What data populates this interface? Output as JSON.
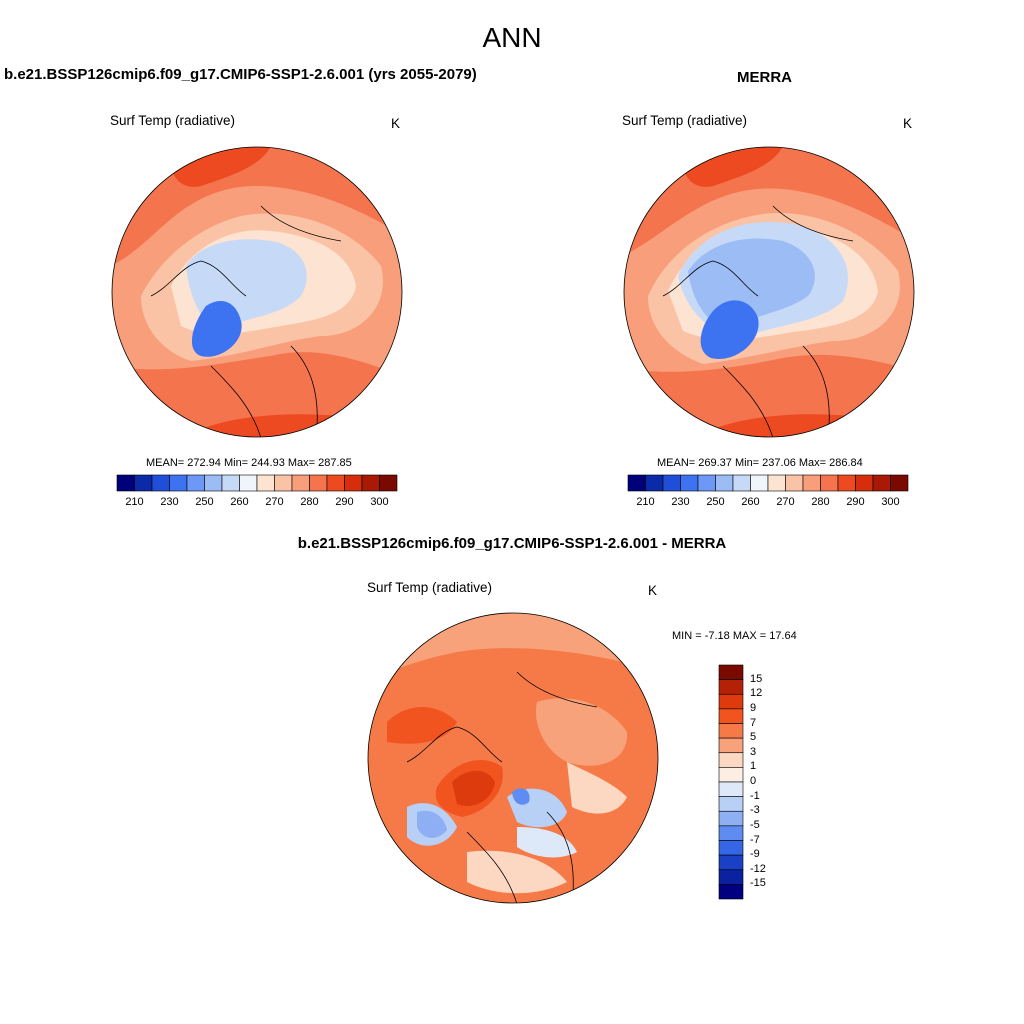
{
  "title": "ANN",
  "panels": [
    {
      "title": "b.e21.BSSP126cmip6.f09_g17.CMIP6-SSP1-2.6.001 (yrs 2055-2079)",
      "variable": "Surf Temp (radiative)",
      "units": "K",
      "stats": "MEAN= 272.94  Min= 244.93  Max= 287.85"
    },
    {
      "title": "MERRA",
      "variable": "Surf Temp (radiative)",
      "units": "K",
      "stats": "MEAN= 269.37  Min= 237.06  Max= 286.84"
    },
    {
      "title": "b.e21.BSSP126cmip6.f09_g17.CMIP6-SSP1-2.6.001 - MERRA",
      "variable": "Surf Temp (radiative)",
      "units": "K",
      "stats": "MIN =  -7.18 MAX =  17.64"
    }
  ],
  "abs_colorbar": {
    "labels": [
      "210",
      "230",
      "250",
      "260",
      "270",
      "280",
      "290",
      "300"
    ],
    "colors": [
      "#00007a",
      "#0a2aa8",
      "#1f4fd8",
      "#3d72f0",
      "#6d98f5",
      "#9cbcf6",
      "#c6daf8",
      "#f0f4fb",
      "#fde3d2",
      "#fbc3a5",
      "#f89e7a",
      "#f4744e",
      "#ee4a22",
      "#d62e0c",
      "#a81a05",
      "#7a0a00"
    ]
  },
  "diff_colorbar": {
    "labels": [
      "15",
      "12",
      "9",
      "7",
      "5",
      "3",
      "1",
      "0",
      "-1",
      "-3",
      "-5",
      "-7",
      "-9",
      "-12",
      "-15"
    ],
    "colors": [
      "#7a0a00",
      "#b32206",
      "#dd3a0e",
      "#f2541f",
      "#f57a48",
      "#f7a27a",
      "#fcd8c2",
      "#fdeee4",
      "#dde9f8",
      "#b8cff6",
      "#8eaff4",
      "#5f8cf0",
      "#3566e6",
      "#1a40c6",
      "#0a22a0",
      "#000080"
    ]
  },
  "map_colors": {
    "warm": "#f4744e",
    "warmer": "#ee4a22",
    "mid": "#f89e7a",
    "light": "#fbc3a5",
    "pale": "#fde3d2",
    "icy": "#c6daf8",
    "cool": "#9cbcf6",
    "cold": "#3d72f0"
  }
}
